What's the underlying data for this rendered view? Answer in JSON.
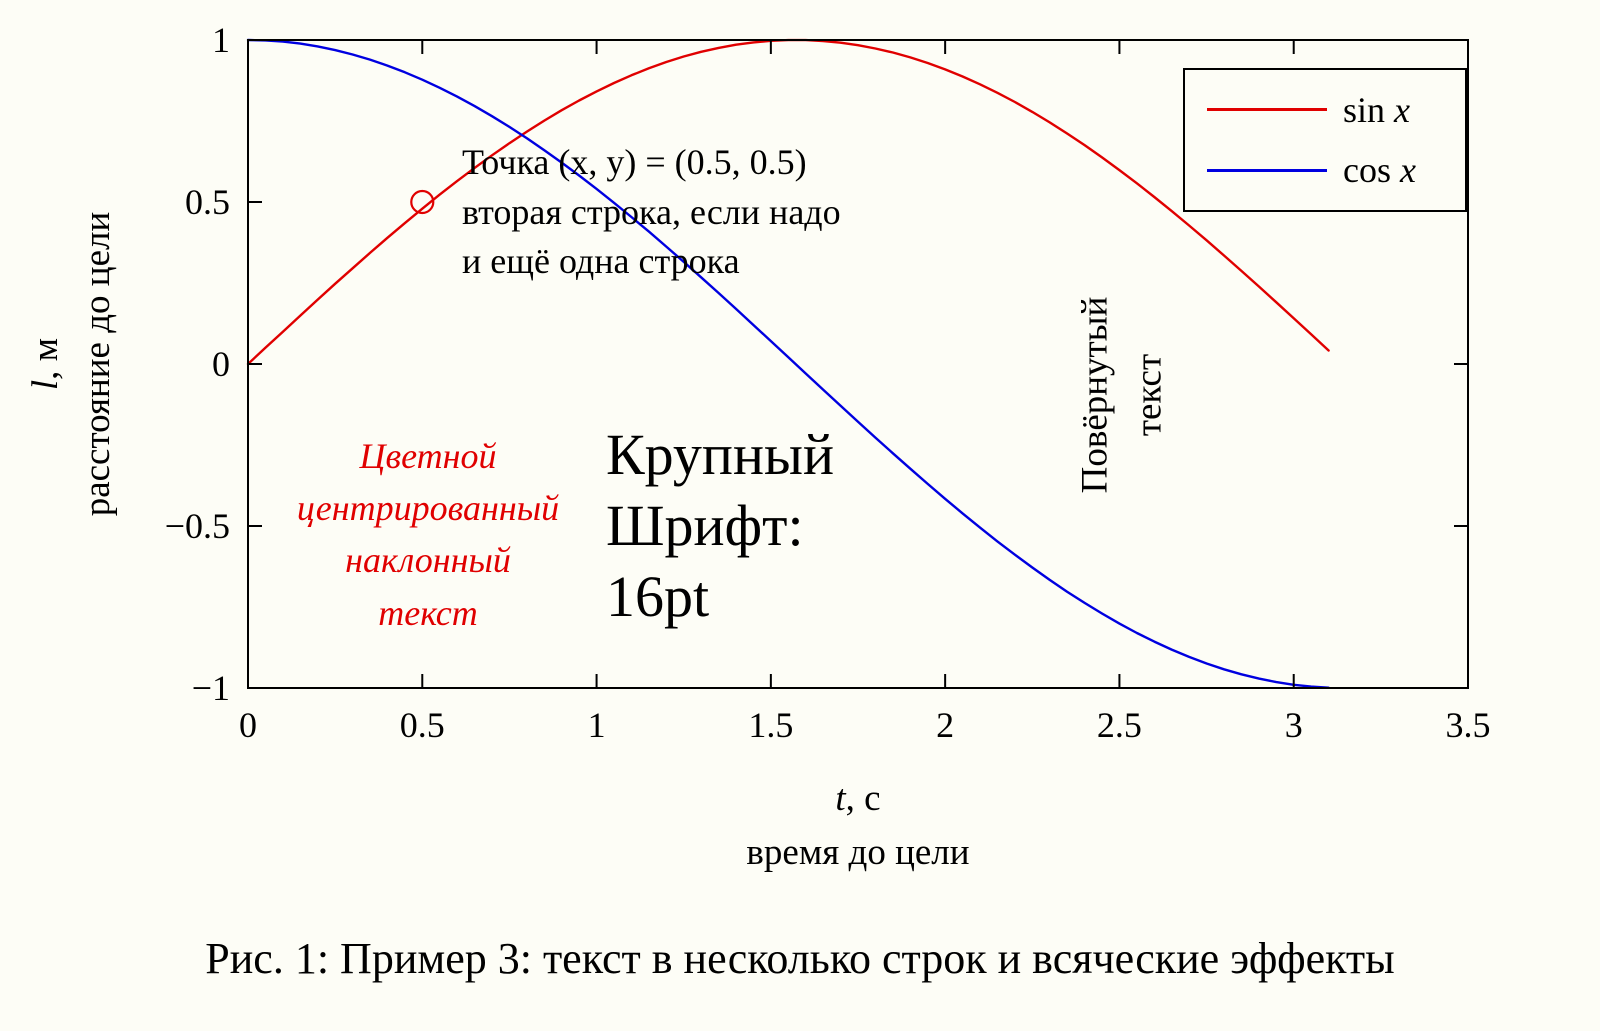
{
  "figure": {
    "background": "#fdfdf6",
    "caption": "Рис. 1: Пример 3: текст в несколько строк и всяческие эффекты"
  },
  "chart_data": {
    "type": "line",
    "title": "",
    "xlabel": {
      "sym": "t",
      "unit": ", с",
      "desc": "время до цели"
    },
    "ylabel": {
      "sym": "l",
      "unit": ", м",
      "desc": "расстояние до цели"
    },
    "xlim": [
      0,
      3.5
    ],
    "ylim": [
      -1,
      1
    ],
    "grid": false,
    "xticks": {
      "values": [
        0,
        0.5,
        1,
        1.5,
        2,
        2.5,
        3,
        3.5
      ],
      "labels": [
        "0",
        "0.5",
        "1",
        "1.5",
        "2",
        "2.5",
        "3",
        "3.5"
      ]
    },
    "yticks": {
      "values": [
        -1,
        -0.5,
        0,
        0.5,
        1
      ],
      "labels": [
        "−1",
        "−0.5",
        "0",
        "0.5",
        "1"
      ]
    },
    "legend": {
      "position": "top-right",
      "entries": [
        {
          "name": "sin x",
          "func": "sin",
          "arg": "x",
          "color": "#e00000"
        },
        {
          "name": "cos x",
          "func": "cos",
          "arg": "x",
          "color": "#0000e0"
        }
      ]
    },
    "x": [
      0,
      0.05,
      0.1,
      0.15,
      0.2,
      0.25,
      0.3,
      0.35,
      0.4,
      0.45,
      0.5,
      0.55,
      0.6,
      0.65,
      0.7,
      0.75,
      0.8,
      0.85,
      0.9,
      0.95,
      1,
      1.05,
      1.1,
      1.15,
      1.2,
      1.25,
      1.3,
      1.35,
      1.4,
      1.45,
      1.5,
      1.55,
      1.6,
      1.65,
      1.7,
      1.75,
      1.8,
      1.85,
      1.9,
      1.95,
      2,
      2.05,
      2.1,
      2.15,
      2.2,
      2.25,
      2.3,
      2.35,
      2.4,
      2.45,
      2.5,
      2.55,
      2.6,
      2.65,
      2.7,
      2.75,
      2.8,
      2.85,
      2.9,
      2.95,
      3,
      3.05,
      3.1
    ],
    "series": [
      {
        "name": "sin x",
        "color": "#e00000",
        "y": [
          0,
          0.05,
          0.0998,
          0.1494,
          0.1987,
          0.2474,
          0.2955,
          0.3429,
          0.3894,
          0.435,
          0.4794,
          0.5227,
          0.5646,
          0.6052,
          0.6442,
          0.6816,
          0.7174,
          0.7513,
          0.7833,
          0.8134,
          0.8415,
          0.8674,
          0.8912,
          0.9128,
          0.932,
          0.949,
          0.9636,
          0.9757,
          0.9854,
          0.9927,
          0.9975,
          0.9998,
          0.9996,
          0.9969,
          0.9917,
          0.9839,
          0.9738,
          0.9613,
          0.9463,
          0.929,
          0.9093,
          0.8874,
          0.8632,
          0.8369,
          0.8085,
          0.7781,
          0.7457,
          0.7115,
          0.6755,
          0.6378,
          0.5985,
          0.5577,
          0.5155,
          0.472,
          0.4274,
          0.3817,
          0.335,
          0.2875,
          0.2392,
          0.1903,
          0.1411,
          0.0916,
          0.0416
        ]
      },
      {
        "name": "cos x",
        "color": "#0000e0",
        "y": [
          1,
          0.9988,
          0.995,
          0.9888,
          0.9801,
          0.9689,
          0.9553,
          0.9394,
          0.9211,
          0.9004,
          0.8776,
          0.8525,
          0.8253,
          0.7961,
          0.7648,
          0.7317,
          0.6967,
          0.66,
          0.6216,
          0.5817,
          0.5403,
          0.4976,
          0.4536,
          0.4085,
          0.3624,
          0.3153,
          0.2675,
          0.219,
          0.17,
          0.1205,
          0.0707,
          0.0208,
          -0.0292,
          -0.0791,
          -0.1288,
          -0.1782,
          -0.2272,
          -0.2756,
          -0.3233,
          -0.3702,
          -0.4161,
          -0.4611,
          -0.5048,
          -0.5474,
          -0.5885,
          -0.6282,
          -0.6663,
          -0.7027,
          -0.7374,
          -0.7702,
          -0.8011,
          -0.8301,
          -0.8569,
          -0.8816,
          -0.9041,
          -0.9243,
          -0.9422,
          -0.9578,
          -0.971,
          -0.9817,
          -0.99,
          -0.9958,
          -0.9991
        ]
      }
    ],
    "annotations": {
      "point_note": {
        "x": 0.5,
        "y": 0.5,
        "marker": "open-circle",
        "color": "#e00000",
        "text": "Точка (x, y) = (0.5, 0.5)\nвторая строка, если надо\nи ещё одна строка"
      },
      "colored_text": {
        "color": "#e00000",
        "style": "italic-centered",
        "text": "Цветной\nцентрированный\nнаклонный\nтекст"
      },
      "big_text": {
        "size_label": "16pt",
        "text": "Крупный\nШрифт:\n16pt"
      },
      "rotated_text": {
        "rotation_deg": -90,
        "text": "Повёрнутый\nтекст"
      }
    }
  }
}
